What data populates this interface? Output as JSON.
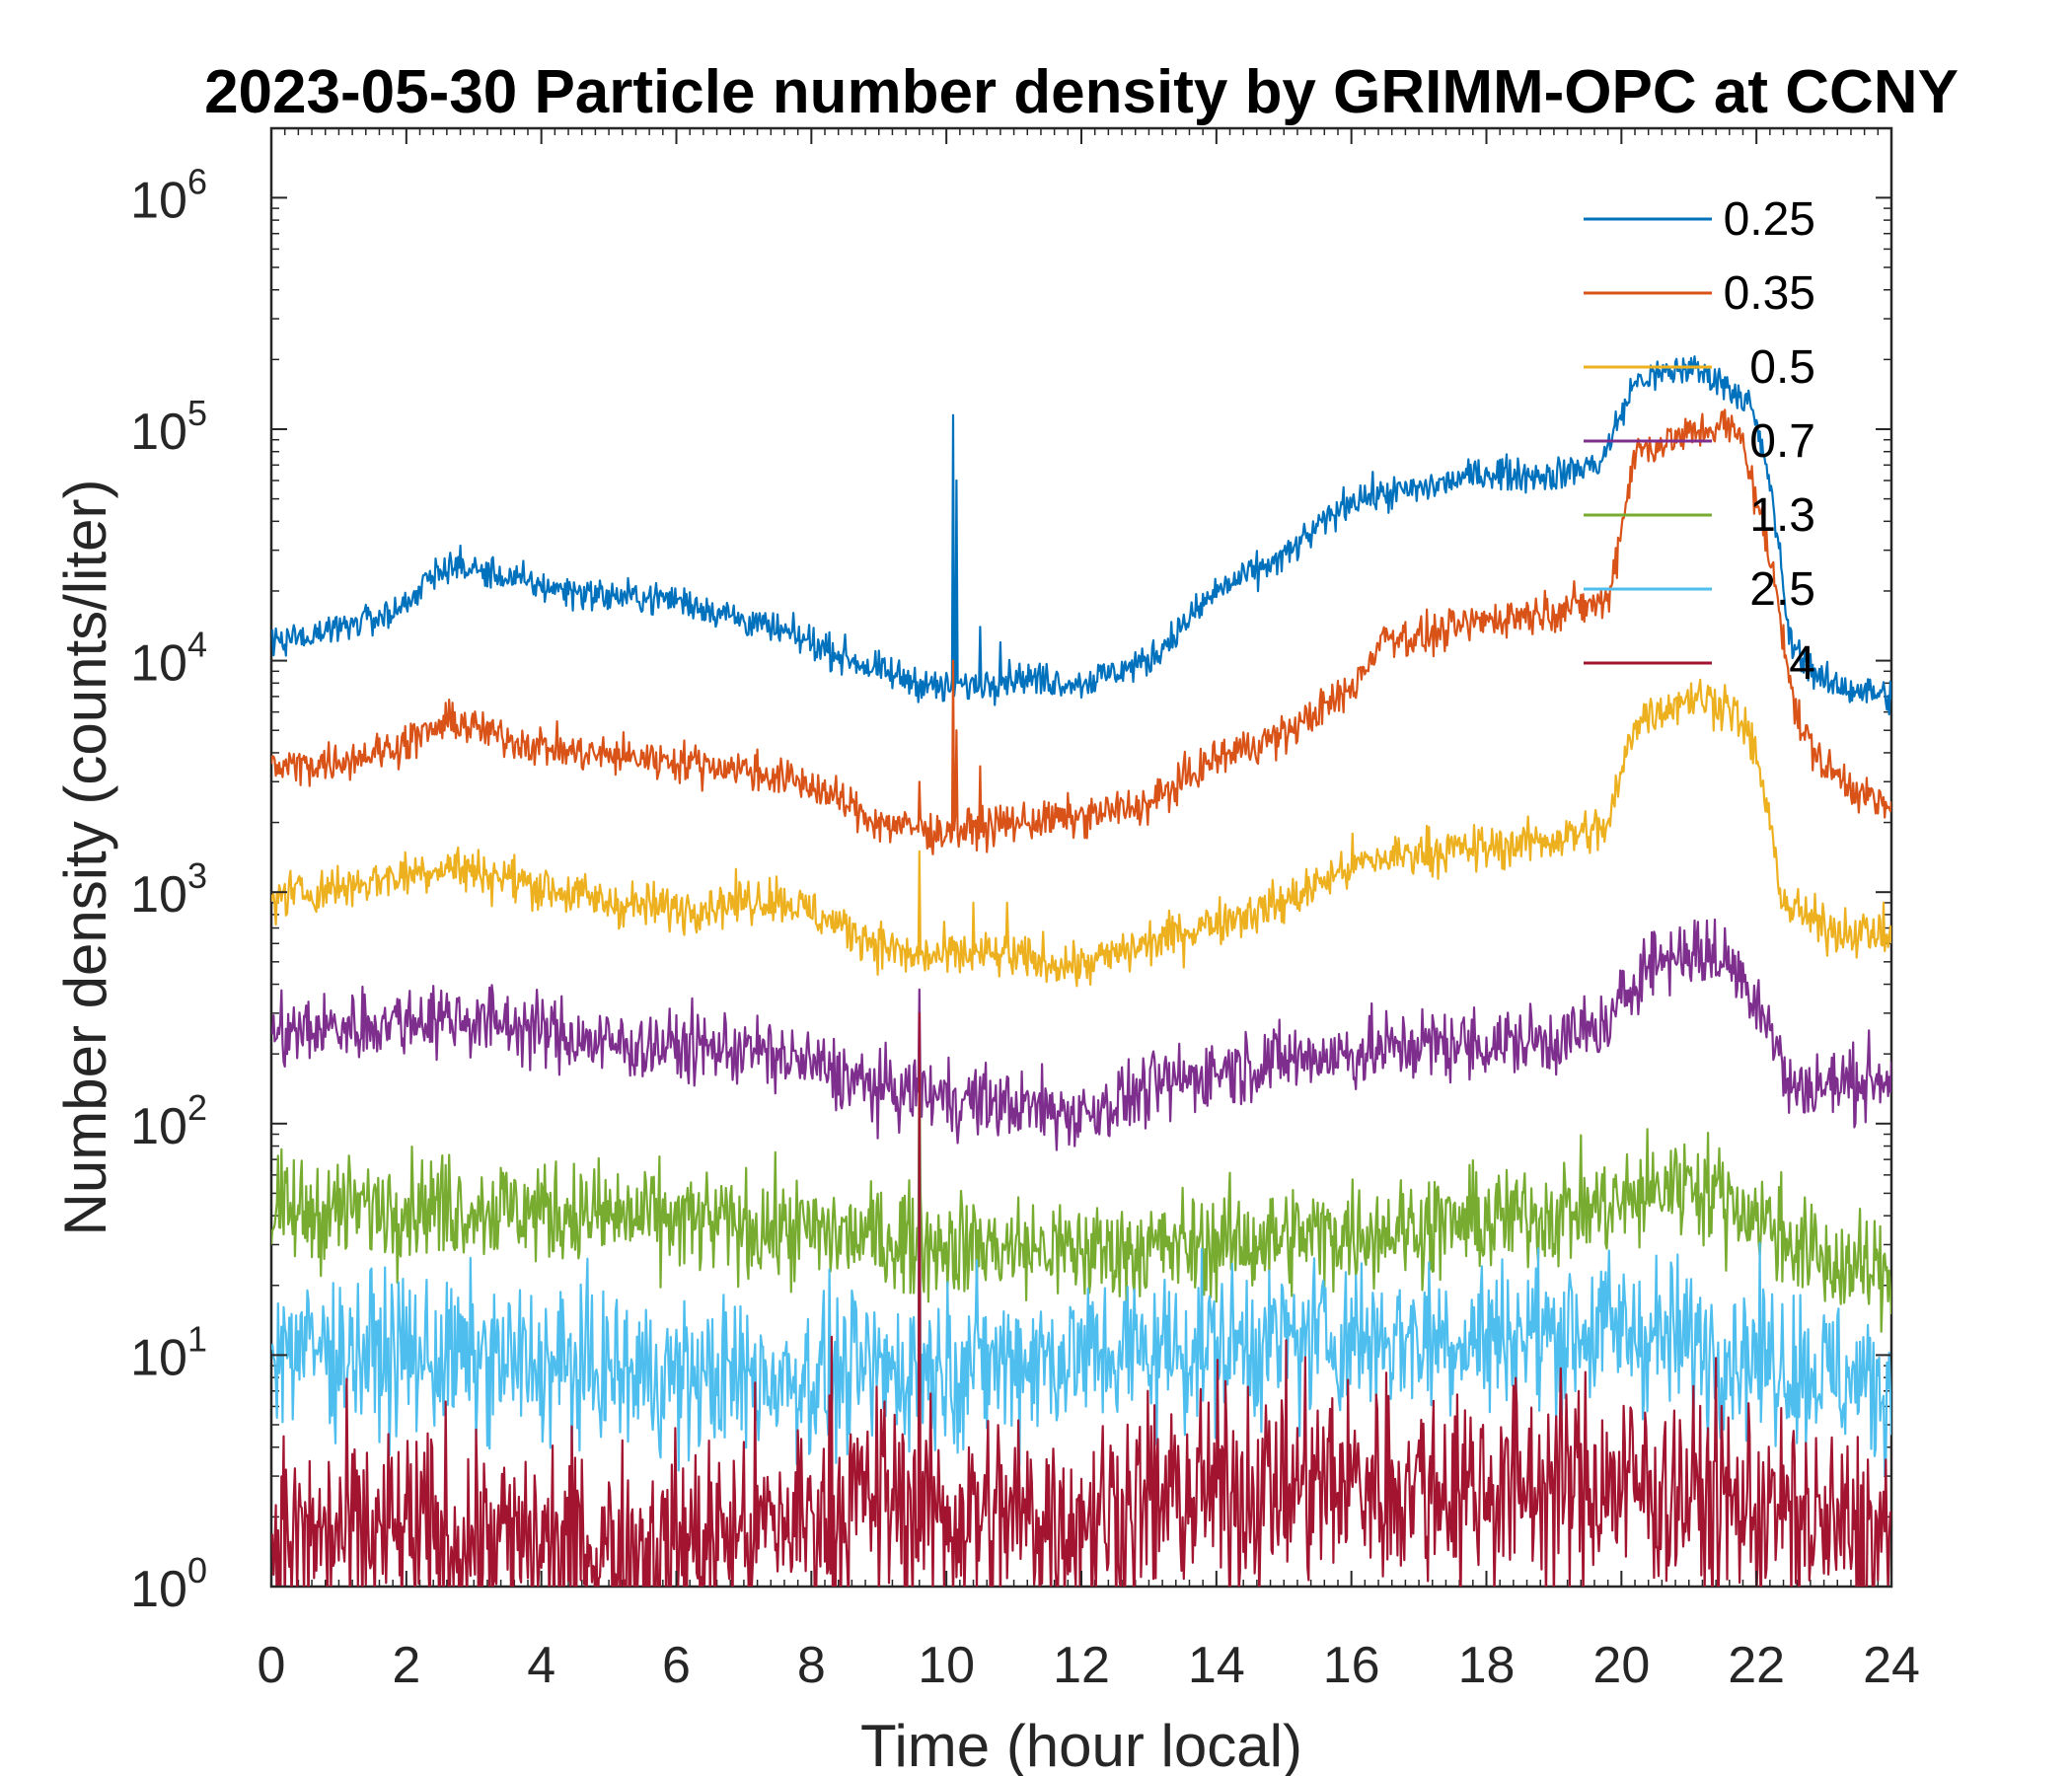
{
  "chart_data": {
    "type": "line",
    "title": "2023-05-30 Particle number density by GRIMM-OPC at CCNY",
    "xlabel": "Time (hour local)",
    "ylabel": "Number density (counts/liter)",
    "xlim": [
      0,
      24
    ],
    "ylim_log10": [
      0,
      6.3
    ],
    "yscale": "log",
    "xticks": [
      "0",
      "2",
      "4",
      "6",
      "8",
      "10",
      "12",
      "14",
      "16",
      "18",
      "20",
      "22",
      "24"
    ],
    "yticks": [
      {
        "base": "10",
        "exp": "0",
        "value": 1
      },
      {
        "base": "10",
        "exp": "1",
        "value": 10
      },
      {
        "base": "10",
        "exp": "2",
        "value": 100
      },
      {
        "base": "10",
        "exp": "3",
        "value": 1000
      },
      {
        "base": "10",
        "exp": "4",
        "value": 10000
      },
      {
        "base": "10",
        "exp": "5",
        "value": 100000
      },
      {
        "base": "10",
        "exp": "6",
        "value": 1000000
      }
    ],
    "legend_position": "top-right",
    "series": [
      {
        "name": "0.25",
        "color": "#0072BD",
        "noise": 0.05,
        "points": [
          [
            0,
            12000
          ],
          [
            1,
            14000
          ],
          [
            1.8,
            16000
          ],
          [
            2.6,
            26000
          ],
          [
            3.2,
            24000
          ],
          [
            4,
            21000
          ],
          [
            5,
            19000
          ],
          [
            6,
            18500
          ],
          [
            7,
            15000
          ],
          [
            8,
            12000
          ],
          [
            9,
            9000
          ],
          [
            10,
            7500
          ],
          [
            11,
            8500
          ],
          [
            12,
            8000
          ],
          [
            13,
            10000
          ],
          [
            14,
            20000
          ],
          [
            15,
            28000
          ],
          [
            16,
            50000
          ],
          [
            17,
            55000
          ],
          [
            18,
            65000
          ],
          [
            19,
            63000
          ],
          [
            19.7,
            72000
          ],
          [
            20.2,
            160000
          ],
          [
            21,
            185000
          ],
          [
            21.5,
            160000
          ],
          [
            21.9,
            130000
          ],
          [
            22.2,
            60000
          ],
          [
            22.5,
            12000
          ],
          [
            23,
            8000
          ],
          [
            24,
            7000
          ]
        ],
        "spikes": [
          [
            10.1,
            115000
          ],
          [
            10.15,
            60000
          ],
          [
            10.5,
            14000
          ],
          [
            10.8,
            12000
          ]
        ]
      },
      {
        "name": "0.35",
        "color": "#D95319",
        "noise": 0.06,
        "points": [
          [
            0,
            3400
          ],
          [
            1,
            3700
          ],
          [
            1.8,
            4200
          ],
          [
            2.7,
            5500
          ],
          [
            3.5,
            4600
          ],
          [
            4.5,
            4000
          ],
          [
            6,
            3700
          ],
          [
            7,
            3400
          ],
          [
            8,
            2900
          ],
          [
            9,
            2000
          ],
          [
            10,
            1800
          ],
          [
            11,
            2000
          ],
          [
            12,
            2100
          ],
          [
            13,
            2400
          ],
          [
            14,
            3800
          ],
          [
            15,
            4800
          ],
          [
            16,
            7500
          ],
          [
            16.5,
            13000
          ],
          [
            17,
            12500
          ],
          [
            18,
            15000
          ],
          [
            19,
            16500
          ],
          [
            19.8,
            18000
          ],
          [
            20.2,
            80000
          ],
          [
            21,
            95000
          ],
          [
            21.5,
            105000
          ],
          [
            21.8,
            90000
          ],
          [
            22.3,
            20000
          ],
          [
            22.6,
            5500
          ],
          [
            23,
            3500
          ],
          [
            24,
            2200
          ]
        ],
        "spikes": [
          [
            9.6,
            3000
          ],
          [
            10.1,
            10000
          ],
          [
            10.15,
            5000
          ],
          [
            10.5,
            3500
          ]
        ]
      },
      {
        "name": "0.5",
        "color": "#EDB120",
        "noise": 0.07,
        "points": [
          [
            0,
            950
          ],
          [
            1,
            1050
          ],
          [
            2.6,
            1300
          ],
          [
            3.5,
            1150
          ],
          [
            5,
            900
          ],
          [
            6,
            850
          ],
          [
            7.5,
            950
          ],
          [
            8.5,
            700
          ],
          [
            9.5,
            520
          ],
          [
            10.5,
            540
          ],
          [
            11.5,
            500
          ],
          [
            12,
            480
          ],
          [
            13,
            600
          ],
          [
            14,
            750
          ],
          [
            15,
            900
          ],
          [
            16,
            1300
          ],
          [
            17,
            1500
          ],
          [
            18,
            1550
          ],
          [
            19,
            1700
          ],
          [
            19.8,
            1900
          ],
          [
            20.2,
            5500
          ],
          [
            21,
            7000
          ],
          [
            21.6,
            6500
          ],
          [
            22,
            4000
          ],
          [
            22.4,
            900
          ],
          [
            23,
            700
          ],
          [
            24,
            650
          ]
        ],
        "spikes": [
          [
            9.6,
            1500
          ],
          [
            10.4,
            900
          ],
          [
            10.9,
            900
          ]
        ]
      },
      {
        "name": "0.7",
        "color": "#7E2F8E",
        "noise": 0.11,
        "points": [
          [
            0,
            240
          ],
          [
            1,
            260
          ],
          [
            2.5,
            290
          ],
          [
            3.5,
            270
          ],
          [
            5,
            220
          ],
          [
            7,
            210
          ],
          [
            8,
            180
          ],
          [
            9,
            140
          ],
          [
            10,
            130
          ],
          [
            11,
            120
          ],
          [
            12,
            110
          ],
          [
            13,
            140
          ],
          [
            14,
            170
          ],
          [
            15,
            190
          ],
          [
            16,
            200
          ],
          [
            17,
            220
          ],
          [
            18,
            220
          ],
          [
            19,
            230
          ],
          [
            19.8,
            260
          ],
          [
            20.3,
            480
          ],
          [
            21,
            560
          ],
          [
            21.6,
            500
          ],
          [
            22.1,
            320
          ],
          [
            22.5,
            140
          ],
          [
            24,
            160
          ]
        ],
        "spikes": [
          [
            9.6,
            380
          ]
        ]
      },
      {
        "name": "1.3",
        "color": "#77AC30",
        "noise": 0.16,
        "points": [
          [
            0,
            40
          ],
          [
            2,
            45
          ],
          [
            4,
            42
          ],
          [
            6,
            38
          ],
          [
            8,
            34
          ],
          [
            10,
            30
          ],
          [
            12,
            28
          ],
          [
            14,
            30
          ],
          [
            16,
            34
          ],
          [
            18,
            38
          ],
          [
            20,
            45
          ],
          [
            21,
            58
          ],
          [
            22,
            40
          ],
          [
            23,
            25
          ],
          [
            24,
            22
          ]
        ],
        "spikes": [
          [
            9.6,
            200
          ]
        ]
      },
      {
        "name": "2.5",
        "color": "#4DBEEE",
        "noise": 0.24,
        "points": [
          [
            0,
            11
          ],
          [
            2,
            10
          ],
          [
            4,
            9
          ],
          [
            6,
            8
          ],
          [
            8,
            8
          ],
          [
            10,
            9
          ],
          [
            12,
            10
          ],
          [
            14,
            11
          ],
          [
            16,
            12
          ],
          [
            18,
            12
          ],
          [
            20,
            13
          ],
          [
            22,
            10
          ],
          [
            24,
            7
          ]
        ],
        "spikes": [
          [
            9.6,
            200
          ]
        ]
      },
      {
        "name": "4",
        "color": "#A2142F",
        "noise": 0.32,
        "points": [
          [
            0,
            1.6
          ],
          [
            2,
            1.7
          ],
          [
            4,
            1.5
          ],
          [
            6,
            1.5
          ],
          [
            8,
            2.0
          ],
          [
            9,
            2.5
          ],
          [
            10,
            2.0
          ],
          [
            12,
            2.0
          ],
          [
            14,
            2.6
          ],
          [
            16,
            2.8
          ],
          [
            18,
            2.7
          ],
          [
            20,
            2.8
          ],
          [
            22,
            2.2
          ],
          [
            24,
            1.5
          ]
        ],
        "spikes": [
          [
            9.6,
            300
          ],
          [
            8.3,
            12
          ]
        ]
      }
    ]
  }
}
